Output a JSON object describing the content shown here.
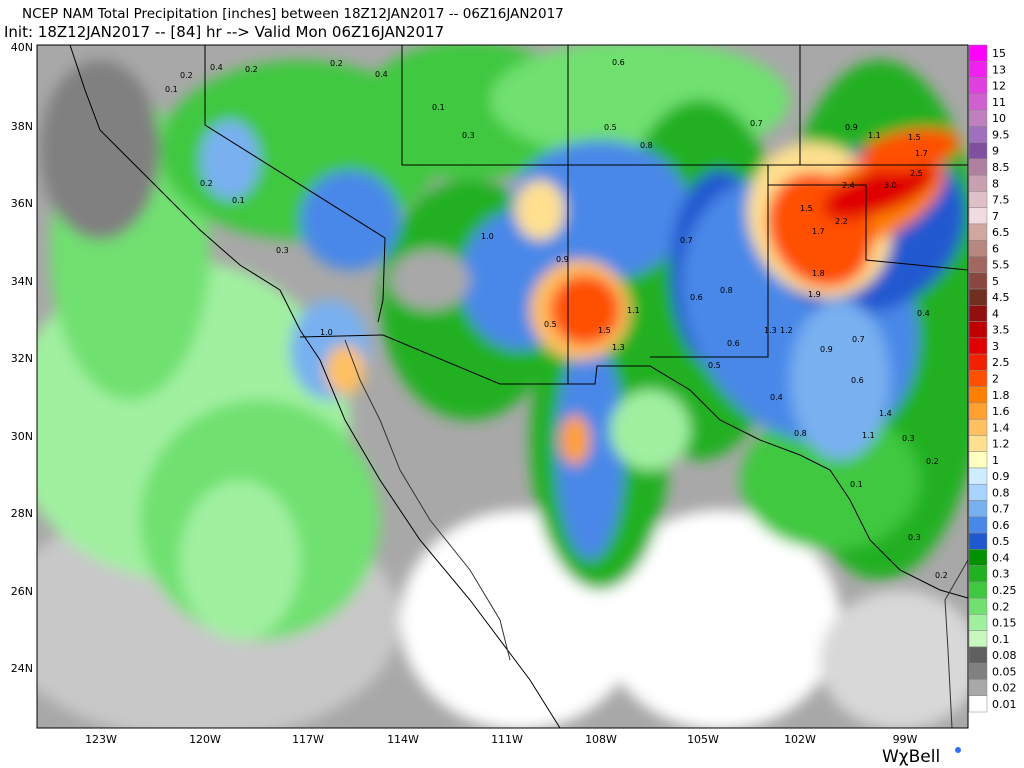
{
  "header": {
    "title": "NCEP NAM Total Precipitation [inches] between 18Z12JAN2017 -- 06Z16JAN2017",
    "subtitle": "Init: 18Z12JAN2017 -- [84] hr --> Valid Mon 06Z16JAN2017"
  },
  "map": {
    "lat_labels": [
      "40N",
      "38N",
      "36N",
      "34N",
      "32N",
      "30N",
      "28N",
      "26N",
      "24N"
    ],
    "lon_labels": [
      "123W",
      "120W",
      "117W",
      "114W",
      "111W",
      "108W",
      "105W",
      "102W",
      "99W"
    ],
    "value_labels": [
      "0.2",
      "0.4",
      "0.2",
      "0.1",
      "0.2",
      "0.4",
      "0.1",
      "0.3",
      "0.5",
      "0.6",
      "0.8",
      "0.7",
      "0.9",
      "1.1",
      "1.5",
      "1.7",
      "2.5",
      "3.0",
      "2.4",
      "1.5",
      "1.7",
      "2.2",
      "1.8",
      "1.9",
      "1.2",
      "0.9",
      "0.7",
      "1.5",
      "1.3",
      "0.9",
      "1.0",
      "0.5",
      "1.1",
      "0.6",
      "0.7",
      "0.8",
      "1.3",
      "0.6",
      "0.5",
      "1.0",
      "0.3",
      "0.2",
      "0.1",
      "0.8",
      "1.4",
      "1.1",
      "0.3",
      "0.2",
      "0.1",
      "0.3",
      "0.2",
      "0.4",
      "0.6",
      "0.4"
    ]
  },
  "colorbar": {
    "levels": [
      {
        "label": "15",
        "color": "#ff00ff"
      },
      {
        "label": "13",
        "color": "#f020f0"
      },
      {
        "label": "12",
        "color": "#e040e0"
      },
      {
        "label": "11",
        "color": "#d060d0"
      },
      {
        "label": "10",
        "color": "#c080c0"
      },
      {
        "label": "9.5",
        "color": "#a070c0"
      },
      {
        "label": "9",
        "color": "#8050a0"
      },
      {
        "label": "8.5",
        "color": "#b080a0"
      },
      {
        "label": "8",
        "color": "#c8a0b0"
      },
      {
        "label": "7.5",
        "color": "#e0c0c8"
      },
      {
        "label": "7",
        "color": "#f0dce0"
      },
      {
        "label": "6.5",
        "color": "#d0a8a0"
      },
      {
        "label": "6",
        "color": "#b88880"
      },
      {
        "label": "5.5",
        "color": "#a06860"
      },
      {
        "label": "5",
        "color": "#884840"
      },
      {
        "label": "4.5",
        "color": "#703020"
      },
      {
        "label": "4",
        "color": "#901010"
      },
      {
        "label": "3.5",
        "color": "#c00000"
      },
      {
        "label": "3",
        "color": "#e00000"
      },
      {
        "label": "2.5",
        "color": "#f02000"
      },
      {
        "label": "2",
        "color": "#ff5000"
      },
      {
        "label": "1.8",
        "color": "#ff8000"
      },
      {
        "label": "1.6",
        "color": "#ffa030"
      },
      {
        "label": "1.4",
        "color": "#ffc060"
      },
      {
        "label": "1.2",
        "color": "#ffe090"
      },
      {
        "label": "1",
        "color": "#ffffc0"
      },
      {
        "label": "0.9",
        "color": "#d0ecff"
      },
      {
        "label": "0.8",
        "color": "#a8d4ff"
      },
      {
        "label": "0.7",
        "color": "#78b0f0"
      },
      {
        "label": "0.6",
        "color": "#4888e8"
      },
      {
        "label": "0.5",
        "color": "#2058d0"
      },
      {
        "label": "0.4",
        "color": "#009000"
      },
      {
        "label": "0.3",
        "color": "#20b020"
      },
      {
        "label": "0.25",
        "color": "#40c840"
      },
      {
        "label": "0.2",
        "color": "#70e070"
      },
      {
        "label": "0.15",
        "color": "#a0f0a0"
      },
      {
        "label": "0.1",
        "color": "#c8f8c0"
      },
      {
        "label": "0.08",
        "color": "#606060"
      },
      {
        "label": "0.05",
        "color": "#808080"
      },
      {
        "label": "0.02",
        "color": "#a8a8a8"
      },
      {
        "label": "0.01",
        "color": "#ffffff"
      }
    ]
  },
  "brand": "WχBell"
}
